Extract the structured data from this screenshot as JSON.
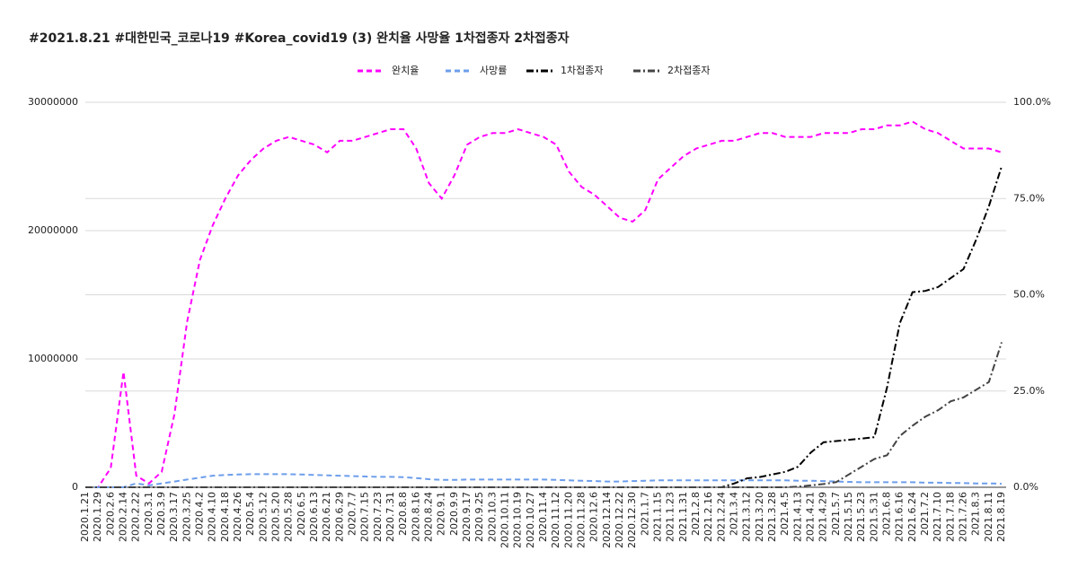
{
  "chart_data": {
    "type": "line",
    "title": "#2021.8.21 #대한민국_코로나19 #Korea_covid19 (3) 완치율 사망율 1차접종자 2차접종자",
    "categories": [
      "2020.1.21",
      "2020.1.29",
      "2020.2.6",
      "2020.2.14",
      "2020.2.22",
      "2020.3.1",
      "2020.3.9",
      "2020.3.17",
      "2020.3.25",
      "2020.4.2",
      "2020.4.10",
      "2020.4.18",
      "2020.4.26",
      "2020.5.4",
      "2020.5.12",
      "2020.5.20",
      "2020.5.28",
      "2020.6.5",
      "2020.6.13",
      "2020.6.21",
      "2020.6.29",
      "2020.7.7",
      "2020.7.15",
      "2020.7.23",
      "2020.7.31",
      "2020.8.8",
      "2020.8.16",
      "2020.8.24",
      "2020.9.1",
      "2020.9.9",
      "2020.9.17",
      "2020.9.25",
      "2020.10.3",
      "2020.10.11",
      "2020.10.19",
      "2020.10.27",
      "2020.11.4",
      "2020.11.12",
      "2020.11.20",
      "2020.11.28",
      "2020.12.6",
      "2020.12.14",
      "2020.12.22",
      "2020.12.30",
      "2021.1.7",
      "2021.1.15",
      "2021.1.23",
      "2021.1.31",
      "2021.2.8",
      "2021.2.16",
      "2021.2.24",
      "2021.3.4",
      "2021.3.12",
      "2021.3.20",
      "2021.3.28",
      "2021.4.5",
      "2021.4.13",
      "2021.4.21",
      "2021.4.29",
      "2021.5.7",
      "2021.5.15",
      "2021.5.23",
      "2021.5.31",
      "2021.6.8",
      "2021.6.16",
      "2021.6.24",
      "2021.7.2",
      "2021.7.10",
      "2021.7.18",
      "2021.7.26",
      "2021.8.3",
      "2021.8.11",
      "2021.8.19"
    ],
    "series": [
      {
        "name": "완치율",
        "color": "#ff00ff",
        "dash": "6,4",
        "axis": "y2",
        "values": [
          0,
          0,
          5,
          30,
          3,
          1,
          4,
          19,
          43,
          59,
          68,
          75,
          81,
          85,
          88,
          90,
          91,
          90,
          89,
          87,
          90,
          90,
          91,
          92,
          93,
          93,
          88,
          79,
          75,
          81,
          89,
          91,
          92,
          92,
          93,
          92,
          91,
          89,
          82,
          78,
          76,
          73,
          70,
          69,
          72,
          80,
          83,
          86,
          88,
          89,
          90,
          90,
          91,
          92,
          92,
          91,
          91,
          91,
          92,
          92,
          92,
          93,
          93,
          94,
          94,
          95,
          93,
          92,
          90,
          88,
          88,
          88,
          87
        ]
      },
      {
        "name": "사망률",
        "color": "#6d9eeb",
        "dash": "6,4",
        "axis": "y2",
        "values": [
          0,
          0,
          0,
          0,
          1,
          0.5,
          1,
          1.5,
          2,
          2.5,
          3,
          3.2,
          3.3,
          3.4,
          3.4,
          3.4,
          3.4,
          3.3,
          3.2,
          3.1,
          3,
          2.9,
          2.8,
          2.7,
          2.7,
          2.6,
          2.4,
          2.1,
          1.9,
          1.9,
          2,
          2,
          2,
          2,
          2,
          2,
          2,
          1.9,
          1.8,
          1.7,
          1.6,
          1.5,
          1.5,
          1.6,
          1.7,
          1.8,
          1.8,
          1.8,
          1.8,
          1.8,
          1.8,
          1.8,
          1.8,
          1.8,
          1.8,
          1.8,
          1.7,
          1.7,
          1.6,
          1.5,
          1.4,
          1.3,
          1.3,
          1.3,
          1.3,
          1.3,
          1.2,
          1.2,
          1.1,
          1.1,
          1.0,
          1.0,
          0.9
        ]
      },
      {
        "name": "1차접종자",
        "color": "#000000",
        "dash": "8,3,2,3",
        "values": [
          0,
          0,
          0,
          0,
          0,
          0,
          0,
          0,
          0,
          0,
          0,
          0,
          0,
          0,
          0,
          0,
          0,
          0,
          0,
          0,
          0,
          0,
          0,
          0,
          0,
          0,
          0,
          0,
          0,
          0,
          0,
          0,
          0,
          0,
          0,
          0,
          0,
          0,
          0,
          0,
          0,
          0,
          0,
          0,
          0,
          0,
          0,
          0,
          0,
          0,
          0,
          300000,
          700000,
          800000,
          1000000,
          1200000,
          1600000,
          2700000,
          3500000,
          3600000,
          3700000,
          3800000,
          3900000,
          7800000,
          12800000,
          15200000,
          15300000,
          15600000,
          16300000,
          17000000,
          19300000,
          21900000,
          25000000
        ]
      },
      {
        "name": "2차접종자",
        "color": "#444444",
        "dash": "8,3,2,3",
        "values": [
          0,
          0,
          0,
          0,
          0,
          0,
          0,
          0,
          0,
          0,
          0,
          0,
          0,
          0,
          0,
          0,
          0,
          0,
          0,
          0,
          0,
          0,
          0,
          0,
          0,
          0,
          0,
          0,
          0,
          0,
          0,
          0,
          0,
          0,
          0,
          0,
          0,
          0,
          0,
          0,
          0,
          0,
          0,
          0,
          0,
          0,
          0,
          0,
          0,
          0,
          0,
          0,
          0,
          0,
          0,
          0,
          50000,
          150000,
          250000,
          400000,
          1000000,
          1600000,
          2200000,
          2500000,
          4000000,
          4800000,
          5500000,
          6000000,
          6700000,
          7000000,
          7600000,
          8200000,
          11300000
        ]
      }
    ],
    "ylim": [
      0,
      30000000
    ],
    "yticks": [
      0,
      10000000,
      20000000,
      30000000
    ],
    "y2lim": [
      0,
      100
    ],
    "y2ticks": [
      {
        "value": 0,
        "label": "0.0%"
      },
      {
        "value": 25,
        "label": "25.0%"
      },
      {
        "value": 50,
        "label": "50.0%"
      },
      {
        "value": 75,
        "label": "75.0%"
      },
      {
        "value": 100,
        "label": "100.0%"
      }
    ],
    "grid": true,
    "legend": "top"
  }
}
